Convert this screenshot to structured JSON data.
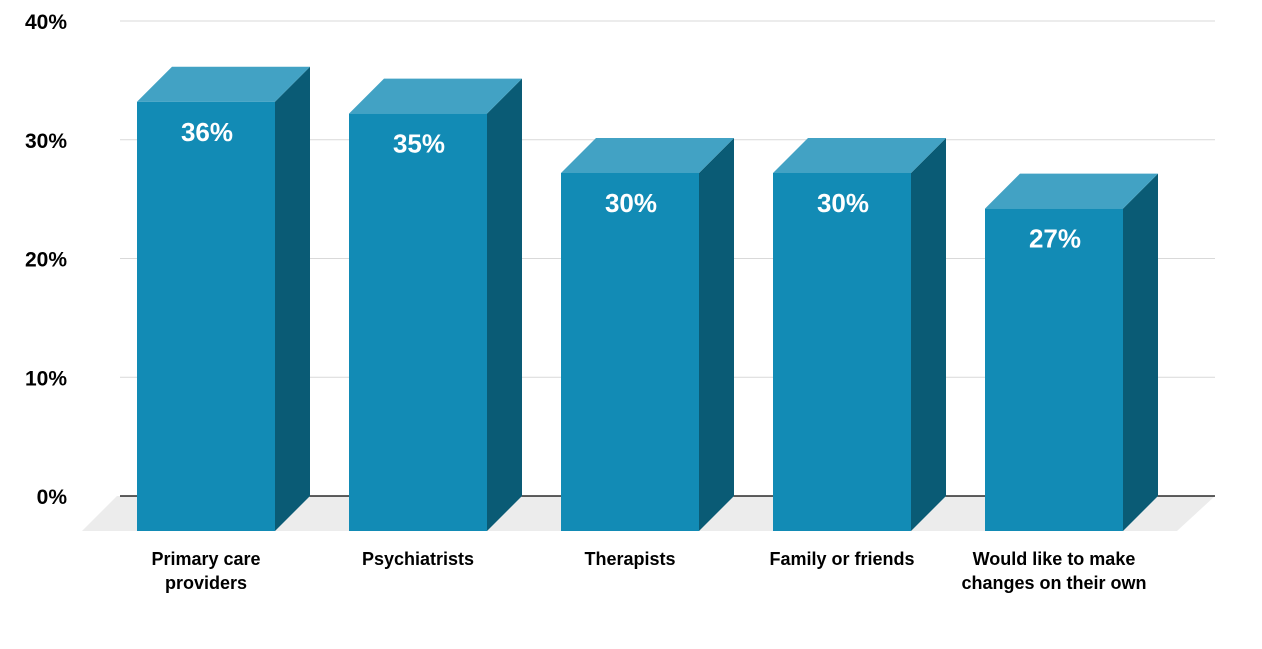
{
  "chart_data": {
    "type": "bar",
    "categories": [
      [
        "Primary care",
        "providers"
      ],
      [
        "Psychiatrists"
      ],
      [
        "Therapists"
      ],
      [
        "Family or friends"
      ],
      [
        "Would like to make",
        "changes on their own"
      ]
    ],
    "values": [
      36,
      35,
      30,
      30,
      27
    ],
    "value_labels": [
      "36%",
      "35%",
      "30%",
      "30%",
      "27%"
    ],
    "ylim": [
      0,
      40
    ],
    "y_ticks": [
      0,
      10,
      20,
      30,
      40
    ],
    "y_tick_labels": [
      "0%",
      "10%",
      "20%",
      "30%",
      "40%"
    ],
    "grid": true,
    "style": "3d-bar",
    "colors": {
      "bar_front": "#128bb5",
      "bar_top": "#42a2c4",
      "bar_side": "#0a5b75",
      "floor": "#ececec",
      "grid": "#d9d9d9",
      "axis": "#000000"
    }
  }
}
